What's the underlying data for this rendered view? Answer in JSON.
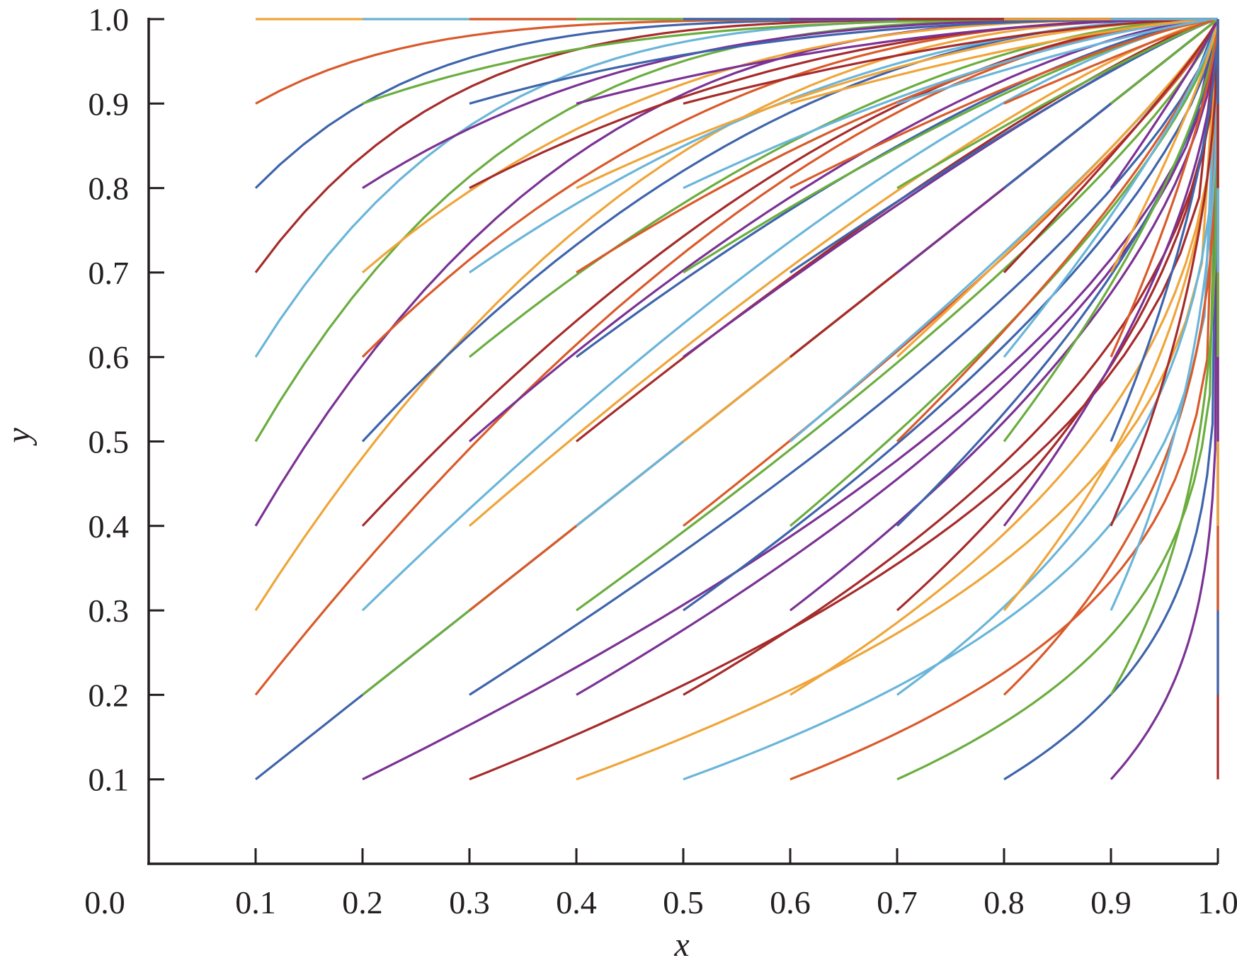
{
  "chart_data": {
    "type": "line",
    "title": "",
    "xlabel": "x",
    "ylabel": "y",
    "xlim": [
      0.0,
      1.0
    ],
    "ylim": [
      0.0,
      1.0
    ],
    "x_ticks": [
      "0.0",
      "0.1",
      "0.2",
      "0.3",
      "0.4",
      "0.5",
      "0.6",
      "0.7",
      "0.8",
      "0.9",
      "1.0"
    ],
    "y_ticks": [
      "0.1",
      "0.2",
      "0.3",
      "0.4",
      "0.5",
      "0.6",
      "0.7",
      "0.8",
      "0.9",
      "1.0"
    ],
    "grid": false,
    "legend": "none",
    "description_of_series": "one curve per starting point (x0, y0) with x0, y0 in {0.1, ..., 1.0}; each curve runs from (x0, y0) to (1.0, 1.0)",
    "start_values": [
      0.1,
      0.2,
      0.3,
      0.4,
      0.5,
      0.6,
      0.7,
      0.8,
      0.9,
      1.0
    ],
    "end_point": [
      1.0,
      1.0
    ],
    "colors": [
      "#3e64ab",
      "#d95a2b",
      "#efa53a",
      "#7b3294",
      "#6bad3f",
      "#6ab5d9",
      "#a62b2b"
    ],
    "axis_color": "#231f20"
  }
}
